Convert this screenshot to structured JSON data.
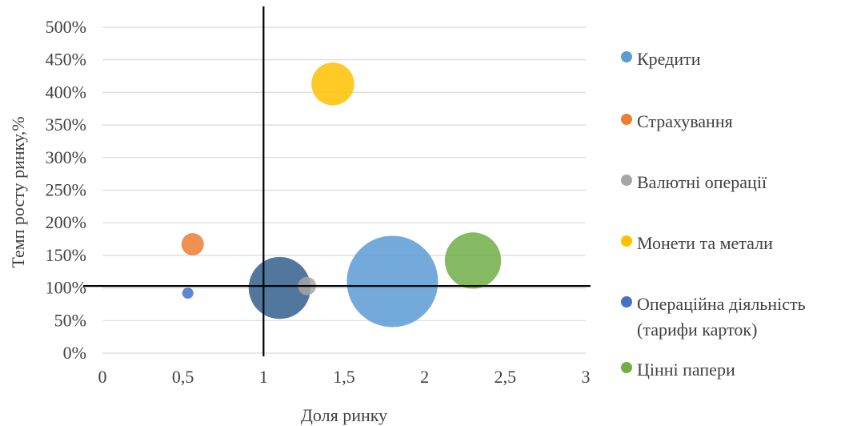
{
  "chart_data": {
    "type": "bubble",
    "xlabel": "Доля ринку",
    "ylabel": "Темп росту ринку,%",
    "xlim": [
      0,
      3
    ],
    "ylim": [
      0,
      500
    ],
    "x_ticks": [
      "0",
      "0,5",
      "1",
      "1,5",
      "2",
      "2,5",
      "3"
    ],
    "y_ticks": [
      "0%",
      "50%",
      "100%",
      "150%",
      "200%",
      "250%",
      "300%",
      "350%",
      "400%",
      "450%",
      "500%"
    ],
    "grid": "horizontal",
    "legend_position": "right",
    "reference_lines": {
      "x": 1,
      "y": 103
    },
    "series": [
      {
        "name": "Кредити",
        "name_lines": [
          "Кредити"
        ],
        "color": "#5B9BD5",
        "x": 1.8,
        "y": 110,
        "size": 100
      },
      {
        "name": "Страхування",
        "name_lines": [
          "Страхування"
        ],
        "color": "#ED7D31",
        "x": 0.56,
        "y": 167,
        "size": 6
      },
      {
        "name": "Валютні операції",
        "name_lines": [
          "Валютні операції"
        ],
        "color": "#A5A5A5",
        "x": 1.27,
        "y": 103,
        "size": 4
      },
      {
        "name": "Монети та метали",
        "name_lines": [
          "Монети та метали"
        ],
        "color": "#FFC000",
        "x": 1.43,
        "y": 413,
        "size": 22
      },
      {
        "name": "Операційна діяльність (тарифи карток)",
        "name_lines": [
          "Операційна діяльність",
          "(тарифи карток)"
        ],
        "color": "#4472C4",
        "x": 0.53,
        "y": 92,
        "size": 1.5
      },
      {
        "name": "Цінні папери",
        "name_lines": [
          "Цінні папери"
        ],
        "color": "#70AD47",
        "x": 2.3,
        "y": 142,
        "size": 38
      }
    ],
    "extra_bubbles": [
      {
        "color": "#335F8E",
        "x": 1.1,
        "y": 100,
        "size": 46
      }
    ]
  }
}
